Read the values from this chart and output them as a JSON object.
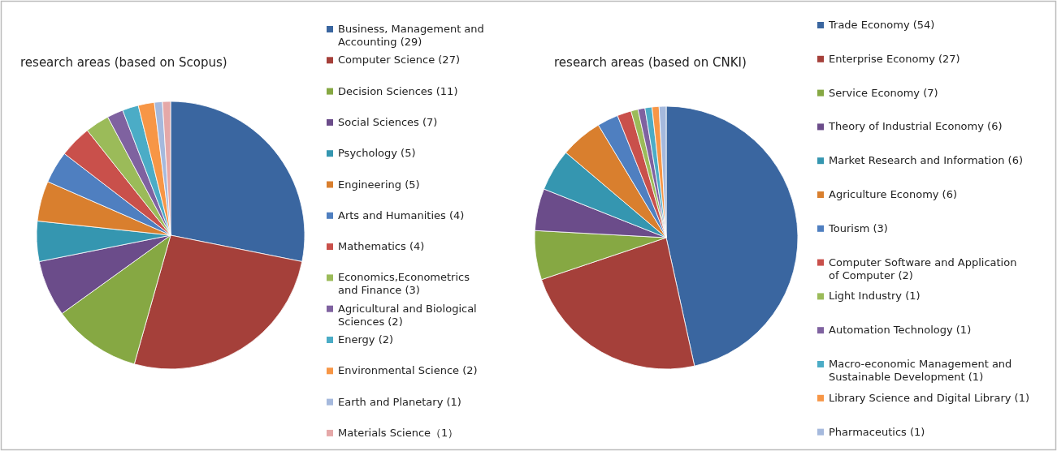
{
  "chart_data": [
    {
      "type": "pie",
      "title": "research areas (based on Scopus)",
      "legend": "right",
      "categories": [
        "Business, Management and\nAccounting (29)",
        "Computer Science (27)",
        "Decision Sciences (11)",
        "Social Sciences (7)",
        "Psychology (5)",
        "Engineering (5)",
        "Arts and Humanities (4)",
        "Mathematics (4)",
        "Economics,Econometrics\nand Finance (3)",
        "Agricultural and Biological\nSciences (2)",
        "Energy (2)",
        "Environmental Science (2)",
        "Earth and Planetary (1)",
        "Materials Science（1）"
      ],
      "values": [
        29,
        27,
        11,
        7,
        5,
        5,
        4,
        4,
        3,
        2,
        2,
        2,
        1,
        1
      ],
      "colors": [
        "#3a66a0",
        "#a5403a",
        "#86a843",
        "#6b4c8a",
        "#3596b0",
        "#d97f2e",
        "#4f7fc0",
        "#c9504b",
        "#9bbb59",
        "#7f62a0",
        "#4bacc6",
        "#f79646",
        "#a5b9dd",
        "#e5a8a8"
      ]
    },
    {
      "type": "pie",
      "title": "research areas (based on CNKI)",
      "legend": "right",
      "categories": [
        "Trade Economy (54)",
        "Enterprise Economy (27)",
        "Service Economy (7)",
        "Theory of Industrial Economy (6)",
        "Market Research and Information (6)",
        "Agriculture Economy (6)",
        "Tourism (3)",
        "Computer Software and Application\nof Computer (2)",
        "Light Industry (1)",
        "Automation Technology (1)",
        "Macro-economic Management and\nSustainable Development (1)",
        "Library Science and Digital Library (1)",
        "Pharmaceutics (1)"
      ],
      "values": [
        54,
        27,
        7,
        6,
        6,
        6,
        3,
        2,
        1,
        1,
        1,
        1,
        1
      ],
      "colors": [
        "#3a66a0",
        "#a5403a",
        "#86a843",
        "#6b4c8a",
        "#3596b0",
        "#d97f2e",
        "#4f7fc0",
        "#c9504b",
        "#9bbb59",
        "#7f62a0",
        "#4bacc6",
        "#f79646",
        "#a5b9dd"
      ]
    }
  ]
}
